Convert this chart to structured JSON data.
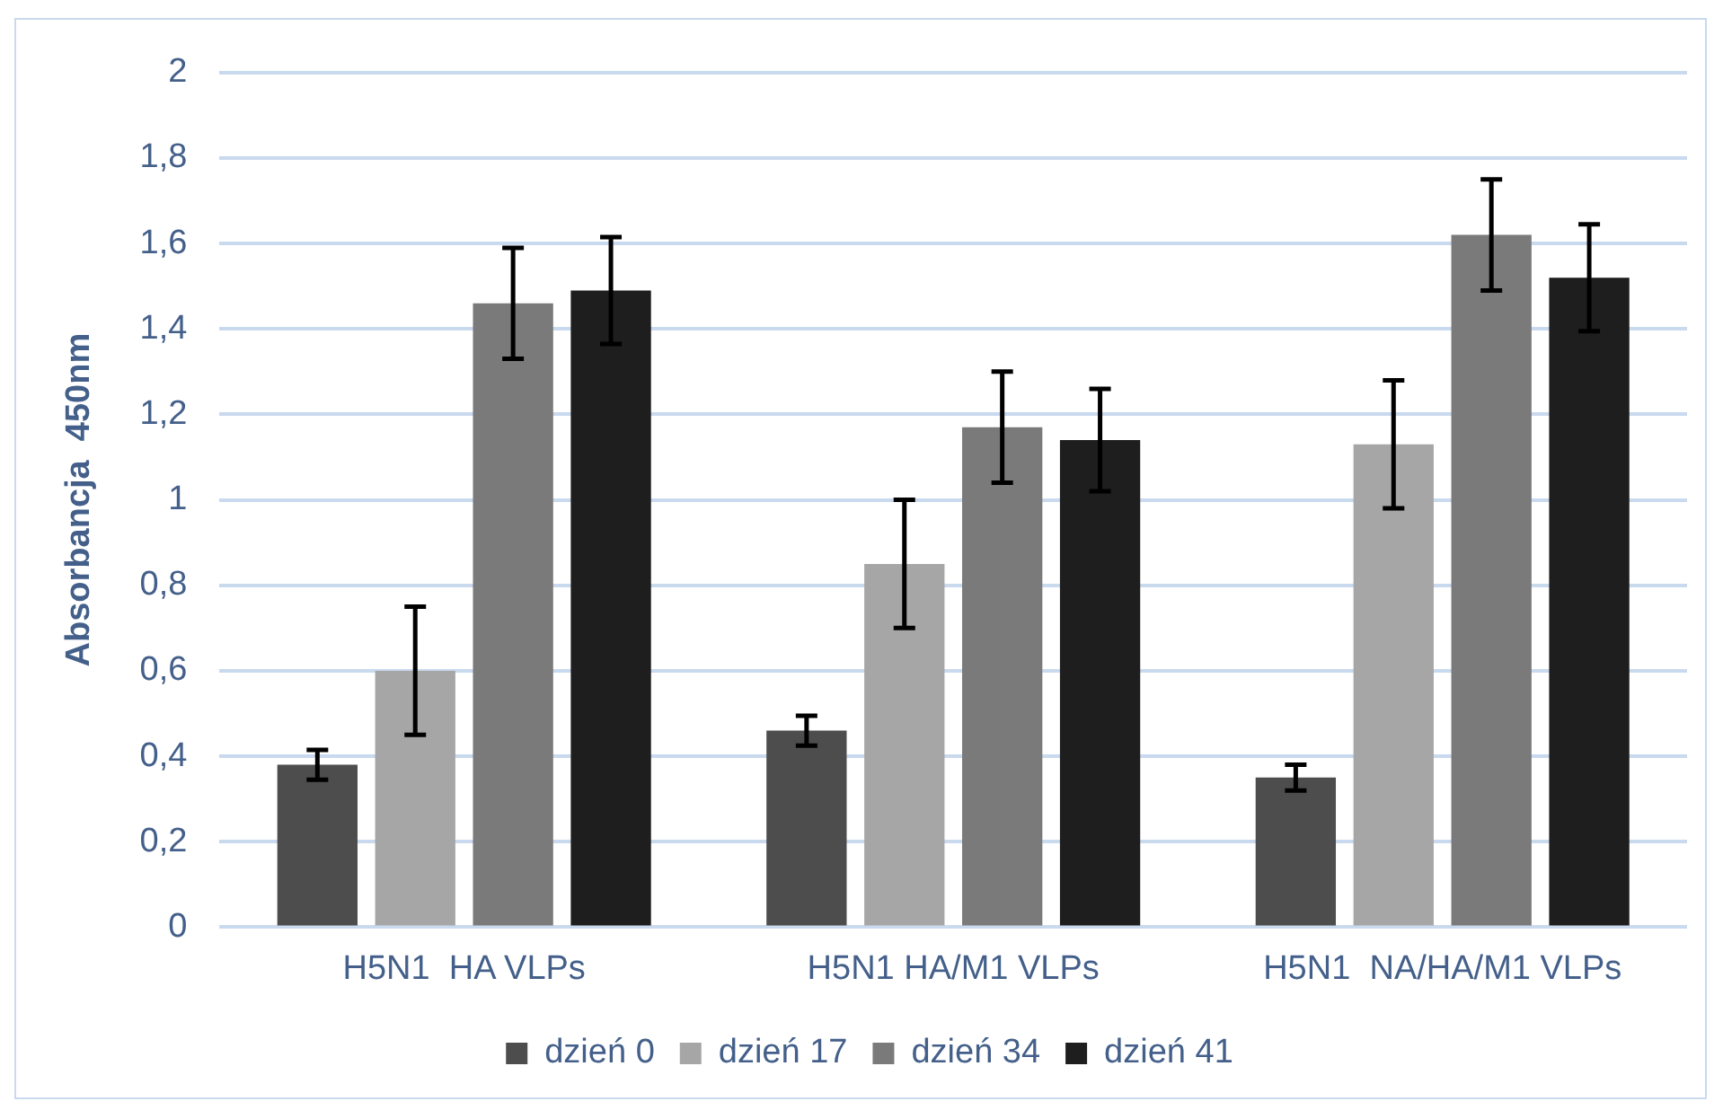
{
  "chart_data": {
    "type": "bar",
    "ylabel": "Absorbancja  450nm",
    "categories": [
      "H5N1  HA VLPs",
      "H5N1 HA/M1 VLPs",
      "H5N1  NA/HA/M1 VLPs"
    ],
    "series": [
      {
        "name": "dzień 0",
        "color": "#4d4d4d",
        "values": [
          0.38,
          0.46,
          0.35
        ],
        "errors": [
          0.035,
          0.035,
          0.03
        ]
      },
      {
        "name": "dzień 17",
        "color": "#a6a6a6",
        "values": [
          0.6,
          0.85,
          1.13
        ],
        "errors": [
          0.15,
          0.15,
          0.15
        ]
      },
      {
        "name": "dzień 34",
        "color": "#7a7a7a",
        "values": [
          1.46,
          1.17,
          1.62
        ],
        "errors": [
          0.13,
          0.13,
          0.13
        ]
      },
      {
        "name": "dzień 41",
        "color": "#1e1e1e",
        "values": [
          1.49,
          1.14,
          1.52
        ],
        "errors": [
          0.125,
          0.12,
          0.125
        ]
      }
    ],
    "ylim": [
      0,
      2
    ],
    "yticks": [
      0,
      {
        "value": 0.2,
        "label": "0,2"
      },
      {
        "value": 0.4,
        "label": "0,4"
      },
      {
        "value": 0.6,
        "label": "0,6"
      },
      {
        "value": 0.8,
        "label": "0,8"
      },
      1,
      {
        "value": 1.2,
        "label": "1,2"
      },
      {
        "value": 1.4,
        "label": "1,4"
      },
      {
        "value": 1.6,
        "label": "1,6"
      },
      {
        "value": 1.8,
        "label": "1,8"
      },
      2
    ],
    "grid": "y",
    "legend": "bottom"
  }
}
